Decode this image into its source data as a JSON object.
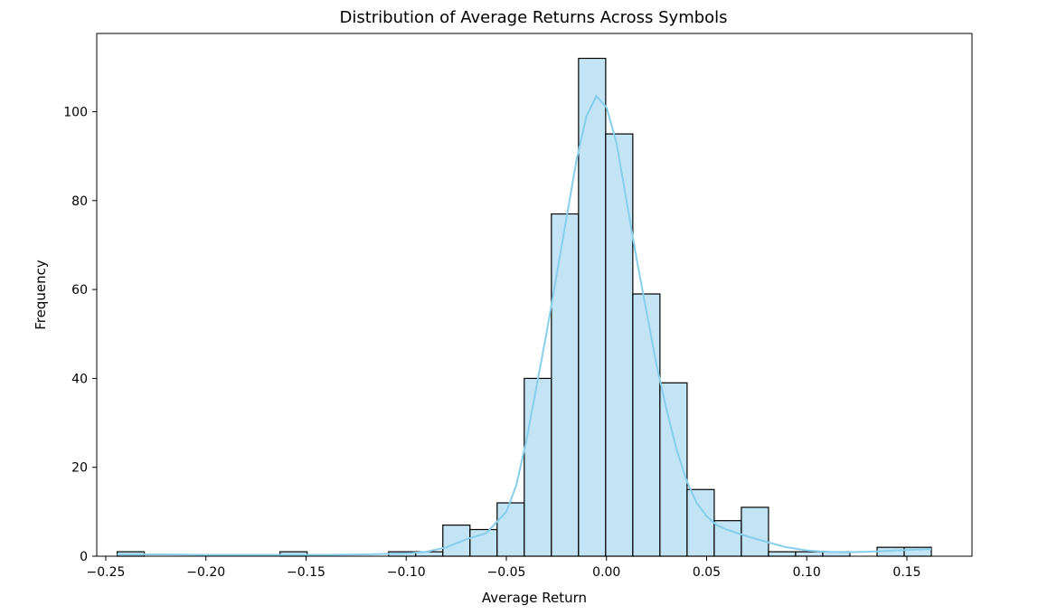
{
  "chart_data": {
    "type": "bar",
    "subtype": "histogram_with_kde",
    "title": "Distribution of Average Returns Across Symbols",
    "xlabel": "Average Return",
    "ylabel": "Frequency",
    "xlim": [
      -0.2545,
      0.1825
    ],
    "ylim": [
      0,
      117.6
    ],
    "x_ticks": [
      -0.25,
      -0.2,
      -0.15,
      -0.1,
      -0.05,
      0.0,
      0.05,
      0.1,
      0.15
    ],
    "x_tick_labels": [
      "−0.25",
      "−0.20",
      "−0.15",
      "−0.10",
      "−0.05",
      "0.00",
      "0.05",
      "0.10",
      "0.15"
    ],
    "y_ticks": [
      0,
      20,
      40,
      60,
      80,
      100
    ],
    "y_tick_labels": [
      "0",
      "20",
      "40",
      "60",
      "80",
      "100"
    ],
    "grid": false,
    "bin_start": -0.2443,
    "bin_width": 0.01355,
    "counts": [
      1,
      0,
      0,
      0,
      0,
      0,
      1,
      0,
      0,
      0,
      1,
      1,
      7,
      6,
      12,
      40,
      77,
      112,
      95,
      59,
      39,
      15,
      8,
      11,
      1,
      1,
      1,
      0,
      2,
      2
    ],
    "kde": {
      "x": [
        -0.2443,
        -0.22,
        -0.2,
        -0.18,
        -0.16,
        -0.14,
        -0.12,
        -0.1,
        -0.09,
        -0.08,
        -0.07,
        -0.06,
        -0.05,
        -0.045,
        -0.04,
        -0.035,
        -0.03,
        -0.025,
        -0.02,
        -0.015,
        -0.01,
        -0.005,
        0.0,
        0.005,
        0.01,
        0.015,
        0.02,
        0.025,
        0.03,
        0.035,
        0.04,
        0.045,
        0.05,
        0.055,
        0.06,
        0.07,
        0.08,
        0.09,
        0.1,
        0.11,
        0.12,
        0.13,
        0.14,
        0.15,
        0.1622
      ],
      "y": [
        0.4,
        0.4,
        0.3,
        0.3,
        0.3,
        0.3,
        0.4,
        0.6,
        1.0,
        2.0,
        3.8,
        5.2,
        10.0,
        16.0,
        26.0,
        38.0,
        50.0,
        63.0,
        76.0,
        89.0,
        99.0,
        103.5,
        101.0,
        93.0,
        80.0,
        67.0,
        55.0,
        43.0,
        33.0,
        24.0,
        17.0,
        12.0,
        9.0,
        7.0,
        6.0,
        4.5,
        3.2,
        2.0,
        1.3,
        1.0,
        0.9,
        1.0,
        1.2,
        1.4,
        1.6
      ]
    },
    "colors": {
      "bar_fill": "#c3e4f4",
      "bar_edge": "#000000",
      "kde_line": "#87ceeb"
    }
  }
}
